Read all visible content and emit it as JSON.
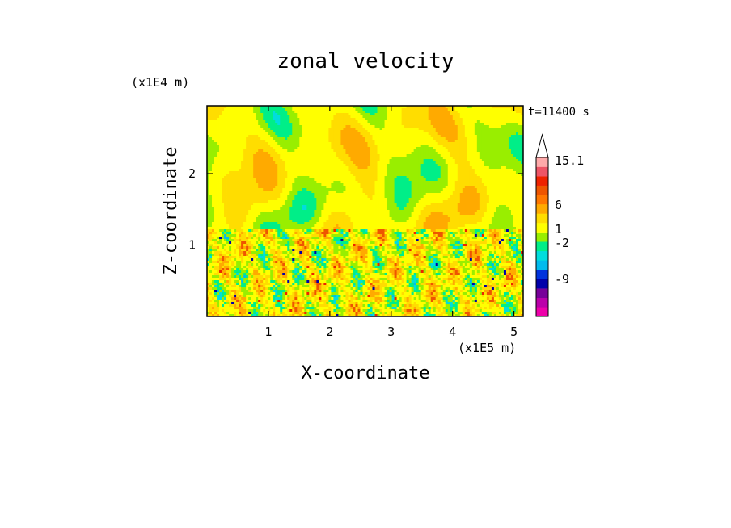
{
  "chart_data": {
    "type": "heatmap",
    "title": "zonal velocity",
    "time_label": "t=11400 s",
    "xlabel": "X-coordinate",
    "ylabel": "Z-coordinate",
    "x_unit": "(x1E5 m)",
    "y_unit": "(x1E4 m)",
    "xlim": [
      0,
      5.15
    ],
    "ylim": [
      0,
      2.95
    ],
    "x_ticks": [
      1,
      2,
      3,
      4,
      5
    ],
    "y_ticks": [
      1,
      2
    ],
    "grid": false,
    "colorbar": {
      "colors": [
        "#ee00aa",
        "#bb00aa",
        "#770099",
        "#0000aa",
        "#0033dd",
        "#00bbee",
        "#00dddd",
        "#00ee88",
        "#99ee00",
        "#ffff00",
        "#ffdd00",
        "#ffaa00",
        "#ff7700",
        "#ee5500",
        "#ee2200",
        "#ee5566",
        "#ffaaaa"
      ],
      "extend_max": true,
      "tick_labels": [
        "15.1",
        "6",
        "1",
        "-2",
        "-9"
      ]
    },
    "field_summary": {
      "dominant_range": [
        -2,
        6
      ],
      "notes": "upper layer mostly yellow/green bands; lower 1E4 m shows small-scale features with local minima near -9 and maxima near 6"
    }
  }
}
